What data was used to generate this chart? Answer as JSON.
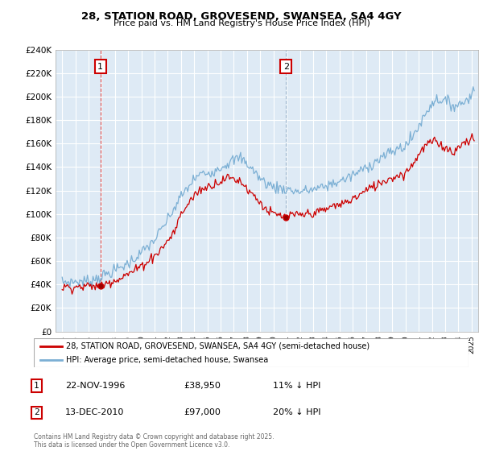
{
  "title_line1": "28, STATION ROAD, GROVESEND, SWANSEA, SA4 4GY",
  "title_line2": "Price paid vs. HM Land Registry's House Price Index (HPI)",
  "legend_label1": "28, STATION ROAD, GROVESEND, SWANSEA, SA4 4GY (semi-detached house)",
  "legend_label2": "HPI: Average price, semi-detached house, Swansea",
  "annotation1_date": "22-NOV-1996",
  "annotation1_price": "£38,950",
  "annotation1_hpi": "11% ↓ HPI",
  "annotation2_date": "13-DEC-2010",
  "annotation2_price": "£97,000",
  "annotation2_hpi": "20% ↓ HPI",
  "footer": "Contains HM Land Registry data © Crown copyright and database right 2025.\nThis data is licensed under the Open Government Licence v3.0.",
  "color_red": "#cc0000",
  "color_blue": "#7bafd4",
  "color_grid": "#c8d8e8",
  "bg_color": "#deeaf5",
  "ylim_min": 0,
  "ylim_max": 240000,
  "ytick_step": 20000,
  "sale1_year": 1996.9,
  "sale1_price": 38950,
  "sale2_year": 2010.95,
  "sale2_price": 97000,
  "xmin": 1994,
  "xmax": 2025
}
